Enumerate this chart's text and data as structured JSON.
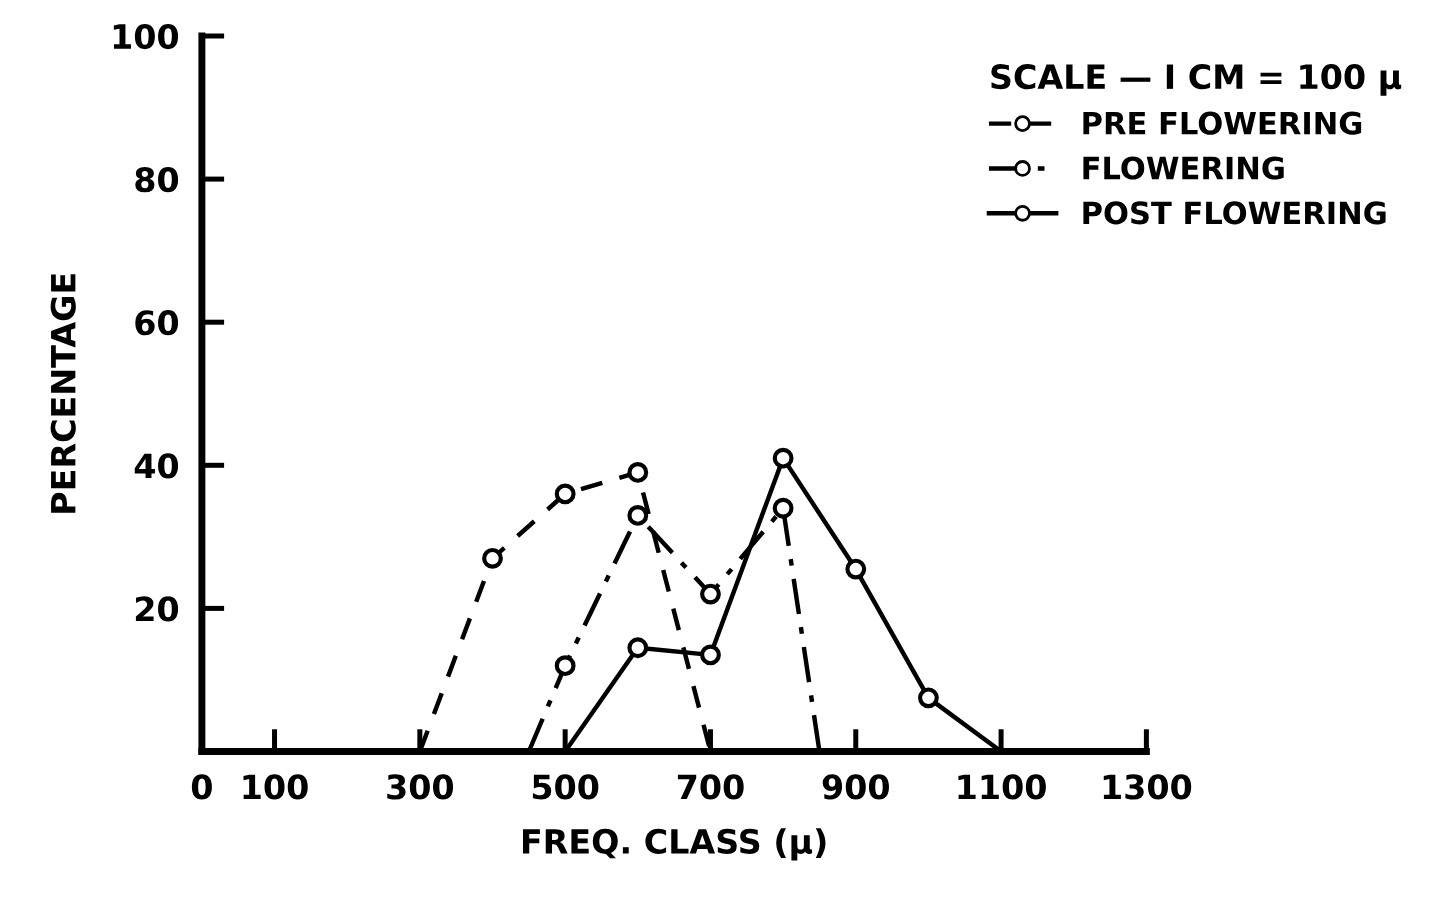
{
  "chart_data": {
    "type": "line",
    "xlabel": "FREQ. CLASS (μ)",
    "ylabel": "PERCENTAGE",
    "legend_title": "SCALE — I CM = 100 μ",
    "series": [
      {
        "name": "PRE FLOWERING",
        "color": "#000000",
        "line_style": "dashed",
        "x": [
          300,
          400,
          500,
          600,
          700
        ],
        "values": [
          0,
          27,
          36,
          39,
          0
        ]
      },
      {
        "name": "FLOWERING",
        "color": "#000000",
        "line_style": "dashdot",
        "x": [
          450,
          500,
          600,
          700,
          800,
          850
        ],
        "values": [
          0,
          12,
          33,
          22,
          34,
          0
        ]
      },
      {
        "name": "POST FLOWERING",
        "color": "#000000",
        "line_style": "solid",
        "x": [
          500,
          600,
          700,
          800,
          900,
          1000,
          1100
        ],
        "values": [
          0,
          14.5,
          13.5,
          41,
          25.5,
          7.5,
          0
        ]
      }
    ],
    "marker": "circle",
    "legend": "top right",
    "grid": false,
    "xlim": [
      0,
      1300
    ],
    "xticks": [
      0,
      100,
      300,
      500,
      700,
      900,
      1100,
      1300
    ],
    "ylim": [
      0,
      100
    ],
    "yticks": [
      20,
      40,
      60,
      80,
      100
    ]
  }
}
